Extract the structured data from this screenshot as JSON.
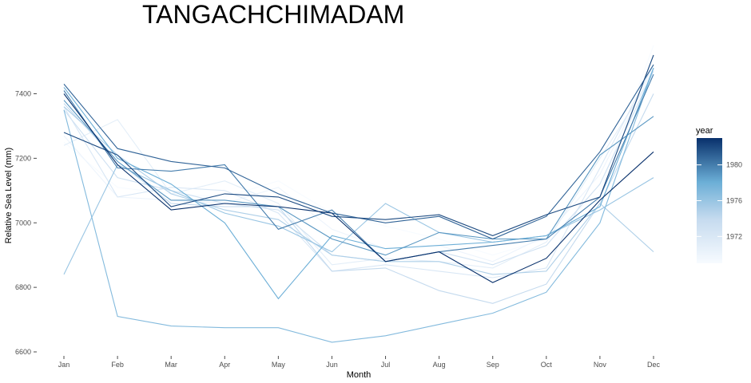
{
  "chart_data": {
    "type": "line",
    "title": "TANGACHCHIMADAM",
    "xlabel": "Month",
    "ylabel": "Relative Sea Level (mm)",
    "categories": [
      "Jan",
      "Feb",
      "Mar",
      "Apr",
      "May",
      "Jun",
      "Jul",
      "Aug",
      "Sep",
      "Oct",
      "Nov",
      "Dec"
    ],
    "ylim": [
      6590,
      7550
    ],
    "yticks": [
      6600,
      6800,
      7000,
      7200,
      7400
    ],
    "grid": false,
    "legend": {
      "title": "year",
      "position": "right",
      "range": [
        1969,
        1983
      ],
      "ticks": [
        1972,
        1976,
        1980
      ],
      "color_low": "#f7fbff",
      "color_high": "#08306b"
    },
    "series": [
      {
        "year": 1969,
        "values": [
          7250,
          7110,
          7090,
          7080,
          7130,
          7030,
          6990,
          6950,
          6900,
          6950,
          7100,
          7550
        ]
      },
      {
        "year": 1970,
        "values": [
          7270,
          7080,
          7070,
          7060,
          7110,
          6980,
          6920,
          6930,
          6880,
          6960,
          7150,
          7480
        ]
      },
      {
        "year": 1971,
        "values": [
          7240,
          7320,
          7090,
          7130,
          7060,
          6870,
          6890,
          6880,
          6860,
          6940,
          7200,
          7460
        ]
      },
      {
        "year": 1972,
        "values": [
          7360,
          7080,
          7110,
          7100,
          7030,
          6850,
          6870,
          6850,
          6830,
          6860,
          7170,
          7490
        ]
      },
      {
        "year": 1973,
        "values": [
          7350,
          7140,
          7100,
          7060,
          7040,
          6900,
          6880,
          6910,
          6870,
          6930,
          7120,
          7470
        ]
      },
      {
        "year": 1974,
        "values": [
          7370,
          7190,
          7060,
          7050,
          7050,
          6850,
          6860,
          6790,
          6750,
          6810,
          7060,
          7400
        ]
      },
      {
        "year": 1975,
        "values": [
          7360,
          7210,
          7090,
          7040,
          7010,
          6900,
          6880,
          6880,
          6840,
          6850,
          7060,
          6910
        ]
      },
      {
        "year": 1976,
        "values": [
          6840,
          7180,
          7100,
          7030,
          6990,
          6910,
          7060,
          6970,
          6940,
          6960,
          7040,
          7140
        ]
      },
      {
        "year": 1977,
        "values": [
          7350,
          6710,
          6680,
          6675,
          6675,
          6630,
          6650,
          6685,
          6720,
          6785,
          7000,
          7480
        ]
      },
      {
        "year": 1978,
        "values": [
          7420,
          7200,
          7120,
          7000,
          6765,
          6960,
          6920,
          6930,
          6940,
          6960,
          7050,
          7480
        ]
      },
      {
        "year": 1979,
        "values": [
          7380,
          7190,
          7070,
          7070,
          7050,
          6950,
          6900,
          6970,
          6950,
          6950,
          7210,
          7330
        ]
      },
      {
        "year": 1980,
        "values": [
          7410,
          7170,
          7160,
          7180,
          6980,
          7040,
          6880,
          6910,
          6930,
          6950,
          7080,
          7460
        ]
      },
      {
        "year": 1981,
        "values": [
          7430,
          7230,
          7190,
          7170,
          7090,
          7030,
          7000,
          7020,
          6950,
          7020,
          7220,
          7490
        ]
      },
      {
        "year": 1982,
        "values": [
          7280,
          7210,
          7050,
          7090,
          7080,
          7020,
          7010,
          7025,
          6960,
          7025,
          7080,
          7520
        ]
      },
      {
        "year": 1983,
        "values": [
          7400,
          7180,
          7040,
          7060,
          7050,
          7030,
          6880,
          6910,
          6815,
          6890,
          7070,
          7220
        ]
      }
    ]
  }
}
